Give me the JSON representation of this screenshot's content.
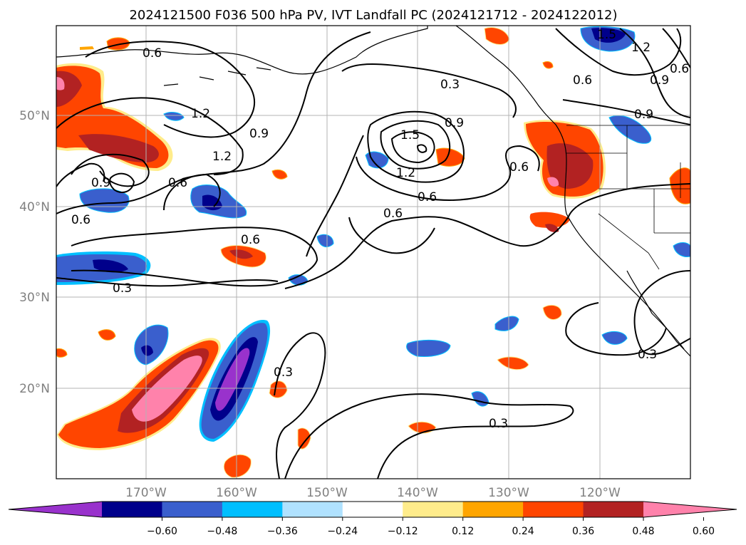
{
  "title": "2024121500 F036 500 hPa PV, IVT Landfall PC (2024121712 - 2024122012)",
  "map": {
    "lat_labels": [
      "50°N",
      "40°N",
      "30°N",
      "20°N"
    ],
    "lon_labels": [
      "170°W",
      "160°W",
      "150°W",
      "140°W",
      "130°W",
      "120°W"
    ],
    "gridlines": true,
    "contour_labels": [
      "0.6",
      "1.2",
      "0.9",
      "1.2",
      "0.6",
      "0.9",
      "0.6",
      "0.6",
      "0.3",
      "0.3",
      "1.5",
      "0.9",
      "1.2",
      "0.6",
      "0.6",
      "0.3",
      "0.6",
      "0.6",
      "0.9",
      "1.2",
      "0.6",
      "0.9",
      "1.5",
      "0.3",
      "0.3"
    ]
  },
  "colorbar": {
    "ticks": [
      "−0.60",
      "−0.48",
      "−0.36",
      "−0.24",
      "−0.12",
      "0.12",
      "0.24",
      "0.36",
      "0.48",
      "0.60"
    ],
    "colors": [
      "#9932cc",
      "#00008b",
      "#3a5fcd",
      "#00bfff",
      "#b0e2ff",
      "#ffffff",
      "#ffec8b",
      "#ffa500",
      "#ff4500",
      "#b22222",
      "#ff82ab"
    ]
  }
}
